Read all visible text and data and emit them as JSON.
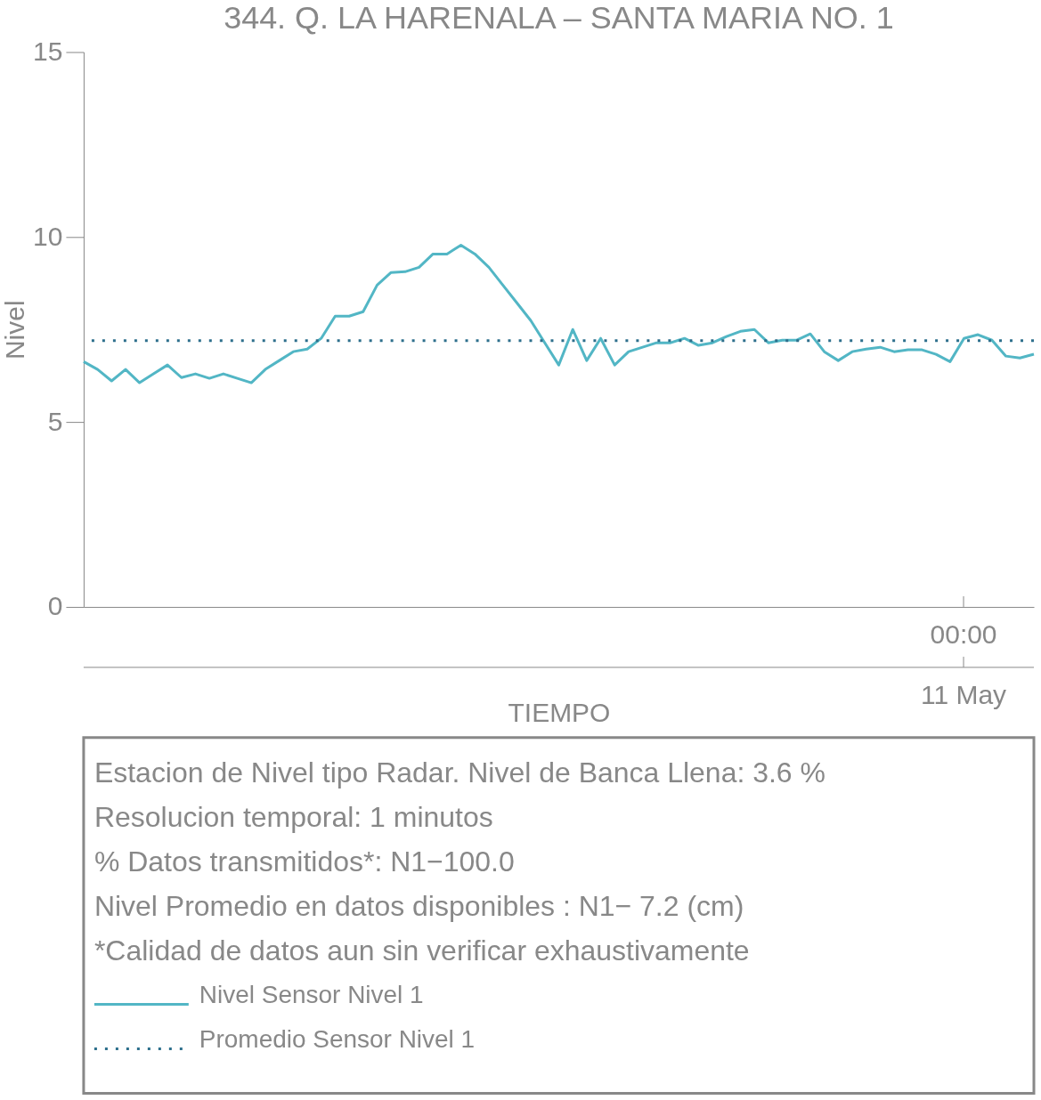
{
  "chart_data": {
    "type": "line",
    "title": "344. Q. LA HARENALA – SANTA MARIA NO. 1",
    "xlabel": "TIEMPO",
    "ylabel": "Nivel",
    "categories": [
      null,
      null,
      null,
      null,
      null,
      null,
      null,
      null,
      null,
      null,
      null,
      null,
      null,
      null,
      null,
      null,
      null,
      null,
      null,
      null,
      null,
      null,
      null,
      null,
      null,
      null,
      null,
      null,
      null,
      null,
      null,
      null,
      null,
      null,
      null,
      null,
      null,
      null,
      null,
      null,
      null,
      null,
      null,
      null,
      null,
      null,
      null,
      null,
      null,
      null,
      null,
      null,
      null,
      null,
      null,
      null,
      null,
      null,
      null,
      null,
      null,
      null,
      null,
      null,
      null,
      null,
      null,
      null,
      null
    ],
    "series": [
      {
        "name": "Nivel Sensor Nivel 1",
        "color": "#52b6c5",
        "values": [
          6.63,
          6.42,
          6.11,
          6.42,
          6.06,
          6.3,
          6.54,
          6.2,
          6.3,
          6.18,
          6.3,
          6.18,
          6.06,
          6.42,
          6.66,
          6.9,
          6.97,
          7.26,
          7.86,
          7.86,
          7.98,
          8.7,
          9.04,
          9.06,
          9.18,
          9.54,
          9.54,
          9.78,
          9.54,
          9.18,
          8.7,
          8.22,
          7.74,
          7.14,
          6.54,
          7.5,
          6.66,
          7.26,
          6.54,
          6.9,
          7.02,
          7.14,
          7.14,
          7.26,
          7.07,
          7.14,
          7.31,
          7.45,
          7.5,
          7.14,
          7.21,
          7.21,
          7.38,
          6.9,
          6.66,
          6.9,
          6.97,
          7.02,
          6.9,
          6.95,
          6.95,
          6.83,
          6.63,
          7.26,
          7.36,
          7.21,
          6.78,
          6.73,
          6.83
        ]
      }
    ],
    "ylim": [
      0,
      15
    ],
    "yticks": [
      0,
      5,
      10,
      15
    ],
    "ref_lines": [
      {
        "axis": "y",
        "value": 7.2,
        "label": "Promedio Sensor Nivel 1",
        "color": "#2d6f8c",
        "line_style": "dotted"
      }
    ],
    "annotations": [
      "00:00",
      "11 May",
      "Estacion de Nivel tipo Radar. Nivel de Banca Llena:  3.6 %",
      "Resolucion temporal: 1 minutos",
      "% Datos transmitidos*: N1−100.0",
      "Nivel Promedio en datos disponibles : N1−  7.2 (cm)",
      "*Calidad de datos aun sin verificar exhaustivamente"
    ],
    "legend": "bottom",
    "grid": false,
    "marker": "none",
    "line_style": "solid"
  }
}
